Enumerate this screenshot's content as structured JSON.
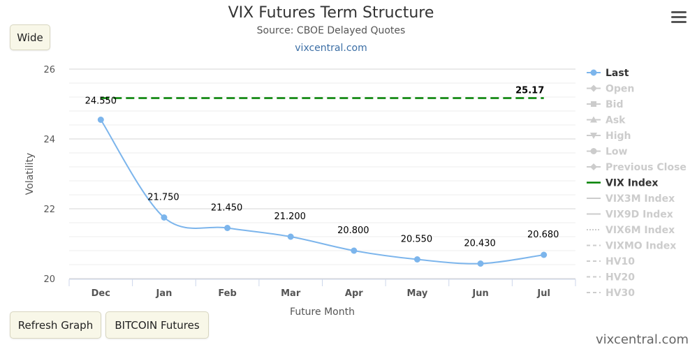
{
  "title": "VIX Futures Term Structure",
  "subtitle": "Source: CBOE Delayed Quotes",
  "link": "vixcentral.com",
  "buttons": {
    "wide": "Wide",
    "refresh": "Refresh Graph",
    "bitcoin": "BITCOIN Futures"
  },
  "credit": "vixcentral.com",
  "chart_data": {
    "type": "line",
    "title": "VIX Futures Term Structure",
    "subtitle": "Source: CBOE Delayed Quotes",
    "xlabel": "Future Month",
    "ylabel": "Volatility",
    "categories": [
      "Dec",
      "Jan",
      "Feb",
      "Mar",
      "Apr",
      "May",
      "Jun",
      "Jul"
    ],
    "ylim": [
      20,
      26
    ],
    "yticks": [
      "20",
      "22",
      "24",
      "26"
    ],
    "grid": true,
    "legend_position": "right",
    "series": [
      {
        "name": "Last",
        "values": [
          24.55,
          21.75,
          21.45,
          21.2,
          20.8,
          20.55,
          20.43,
          20.68
        ],
        "labels": [
          "24.550",
          "21.750",
          "21.450",
          "21.200",
          "20.800",
          "20.550",
          "20.430",
          "20.680"
        ],
        "color": "#7cb5ec"
      },
      {
        "name": "VIX Index",
        "values": [
          25.17,
          25.17,
          25.17,
          25.17,
          25.17,
          25.17,
          25.17,
          25.17
        ],
        "label": "25.17",
        "color": "#008000"
      }
    ],
    "legend": [
      {
        "name": "Last",
        "active": true,
        "symbol": "circle-line"
      },
      {
        "name": "Open",
        "active": false,
        "symbol": "diamond-line"
      },
      {
        "name": "Bid",
        "active": false,
        "symbol": "square-line"
      },
      {
        "name": "Ask",
        "active": false,
        "symbol": "triangle-line"
      },
      {
        "name": "High",
        "active": false,
        "symbol": "triangle-down-line"
      },
      {
        "name": "Low",
        "active": false,
        "symbol": "circle-line"
      },
      {
        "name": "Previous Close",
        "active": false,
        "symbol": "diamond-line"
      },
      {
        "name": "VIX Index",
        "active": true,
        "symbol": "green-line"
      },
      {
        "name": "VIX3M Index",
        "active": false,
        "symbol": "solid-line"
      },
      {
        "name": "VIX9D Index",
        "active": false,
        "symbol": "solid-line"
      },
      {
        "name": "VIX6M Index",
        "active": false,
        "symbol": "dotted-line"
      },
      {
        "name": "VIXMO Index",
        "active": false,
        "symbol": "dash-line"
      },
      {
        "name": "HV10",
        "active": false,
        "symbol": "dash-line"
      },
      {
        "name": "HV20",
        "active": false,
        "symbol": "dash-line"
      },
      {
        "name": "HV30",
        "active": false,
        "symbol": "dash-line"
      }
    ]
  }
}
